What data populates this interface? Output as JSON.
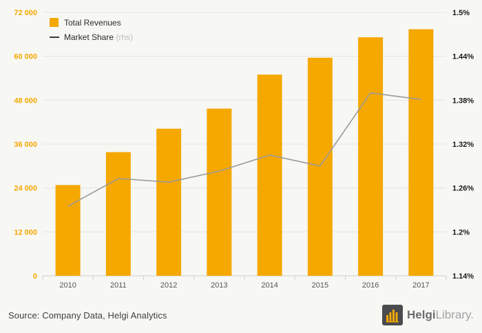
{
  "chart_data": {
    "type": "bar",
    "title": "",
    "categories": [
      "2010",
      "2011",
      "2012",
      "2013",
      "2014",
      "2015",
      "2016",
      "2017"
    ],
    "series": [
      {
        "name": "Total Revenues",
        "type": "bar",
        "axis": "left",
        "values": [
          24800,
          33800,
          40200,
          45700,
          55000,
          59600,
          65200,
          67400
        ]
      },
      {
        "name": "Market Share",
        "type": "line",
        "axis": "right",
        "values": [
          1.235,
          1.273,
          1.268,
          1.283,
          1.305,
          1.29,
          1.39,
          1.381
        ]
      }
    ],
    "left_axis": {
      "min": 0,
      "max": 72000,
      "tick_labels": [
        "0",
        "12 000",
        "24 000",
        "36 000",
        "48 000",
        "60 000",
        "72 000"
      ]
    },
    "right_axis": {
      "min": 1.14,
      "max": 1.5,
      "tick_labels": [
        "1.14%",
        "1.2%",
        "1.26%",
        "1.32%",
        "1.38%",
        "1.44%",
        "1.5%"
      ]
    },
    "legend": {
      "position": "top-left",
      "items": [
        {
          "label": "Total Revenues",
          "suffix": "",
          "marker": "bar"
        },
        {
          "label": "Market Share",
          "suffix": " (rhs)",
          "marker": "line"
        }
      ]
    },
    "grid": "horizontal"
  },
  "colors": {
    "bar": "#F5A800",
    "line": "#9B9B9B",
    "left_axis_label": "#F5A800",
    "right_axis_label": "#1A1A1A",
    "x_axis_label": "#555555",
    "gridline": "#E4E4E1",
    "axis_line": "#CFCFCC",
    "legend_text": "#2B2B2B",
    "legend_suffix": "#BDBDBA"
  },
  "footer": {
    "source": "Source: Company Data, Helgi Analytics",
    "logo_primary": "Helgi",
    "logo_secondary": "Library."
  }
}
